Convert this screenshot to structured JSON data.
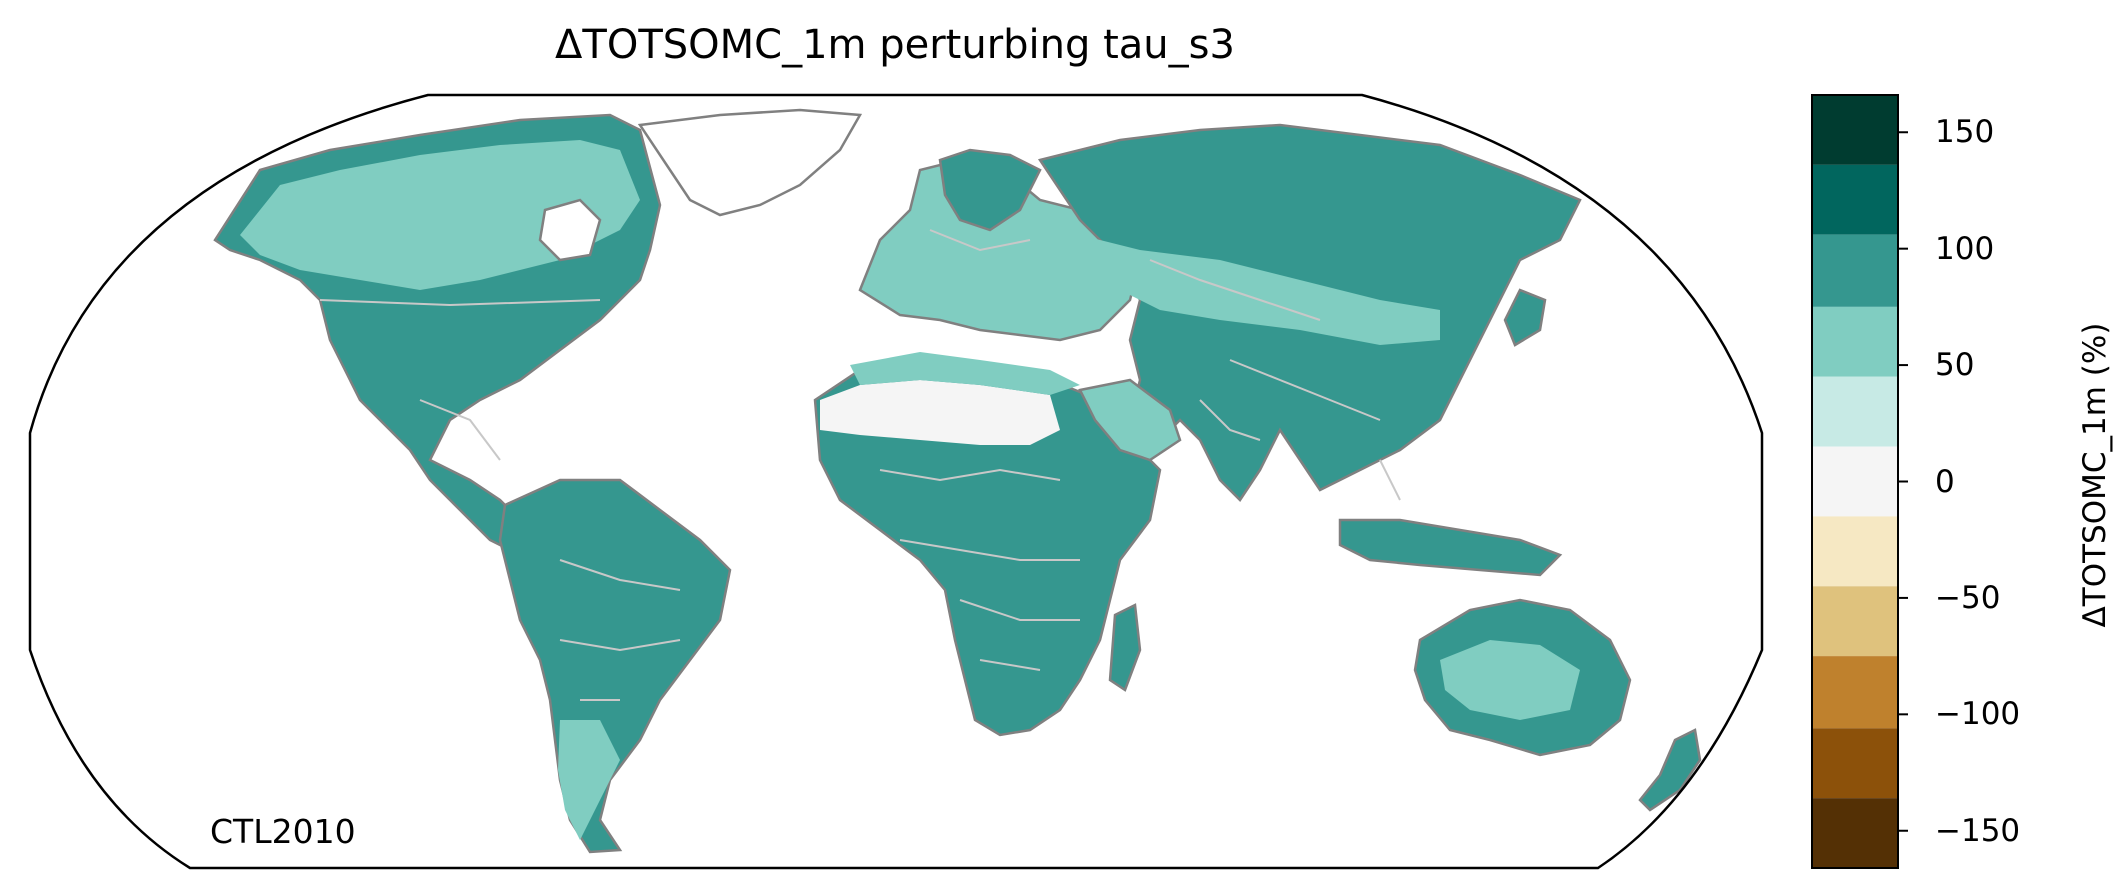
{
  "title": "ΔTOTSOMC_1m perturbing tau_s3",
  "annotation": "CTL2010",
  "colorbar": {
    "label": "ΔTOTSOMC_1m (%)",
    "range": [
      -166,
      166
    ],
    "ticks": [
      {
        "value": 150,
        "label": "150"
      },
      {
        "value": 100,
        "label": "100"
      },
      {
        "value": 50,
        "label": "50"
      },
      {
        "value": 0,
        "label": "0"
      },
      {
        "value": -50,
        "label": "−50"
      },
      {
        "value": -100,
        "label": "−100"
      },
      {
        "value": -150,
        "label": "−150"
      }
    ],
    "bins": [
      {
        "from": 136,
        "to": 166,
        "color": "#003c30"
      },
      {
        "from": 106,
        "to": 136,
        "color": "#01665e"
      },
      {
        "from": 75,
        "to": 106,
        "color": "#35978f"
      },
      {
        "from": 45,
        "to": 75,
        "color": "#80cdc1"
      },
      {
        "from": 15,
        "to": 45,
        "color": "#c7eae5"
      },
      {
        "from": -15,
        "to": 15,
        "color": "#f5f5f5"
      },
      {
        "from": -45,
        "to": -15,
        "color": "#f6e8c3"
      },
      {
        "from": -75,
        "to": -45,
        "color": "#dfc27d"
      },
      {
        "from": -106,
        "to": -75,
        "color": "#bf812d"
      },
      {
        "from": -136,
        "to": -106,
        "color": "#8c510a"
      },
      {
        "from": -166,
        "to": -136,
        "color": "#543005"
      }
    ]
  },
  "map": {
    "projection": "Robinson",
    "land_fill_dominant": "#35978f",
    "boreal_fill": "#80cdc1",
    "desert_fill": "#f5f5f5",
    "coastline_color": "#808080",
    "border_color": "#c8c8c8"
  }
}
